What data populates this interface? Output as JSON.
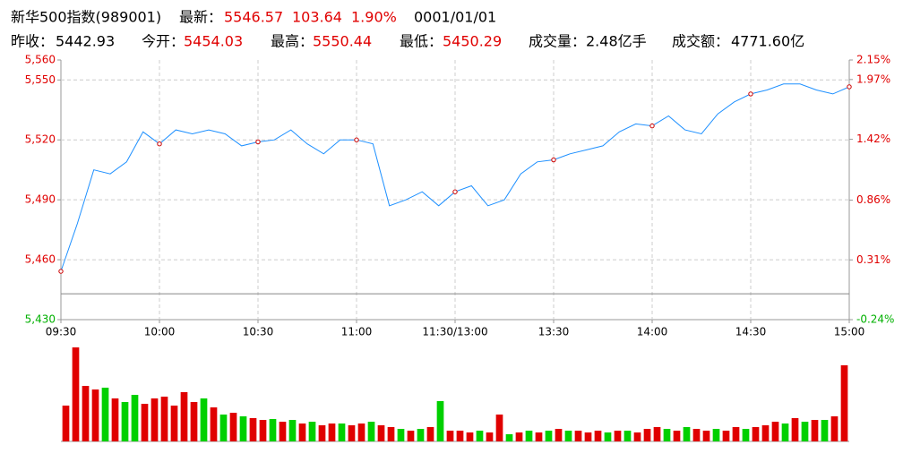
{
  "header": {
    "name": "新华500指数(989001)",
    "latest_label": "最新：",
    "latest": 5546.57,
    "change": 103.64,
    "change_pct": "1.90%",
    "date": "0001/01/01",
    "prev_close_label": "昨收：",
    "prev_close": 5442.93,
    "open_label": "今开：",
    "open": 5454.03,
    "high_label": "最高：",
    "high": 5550.44,
    "low_label": "最低：",
    "low": 5450.29,
    "volume_label": "成交量：",
    "volume": "2.48亿手",
    "amount_label": "成交额：",
    "amount": "4771.60亿"
  },
  "chart_data": [
    {
      "type": "line",
      "color": "#1e90ff",
      "up_color": "#e00000",
      "down_color": "#00b000",
      "grid": true,
      "x": [
        0,
        5,
        10,
        15,
        20,
        25,
        30,
        35,
        40,
        45,
        50,
        55,
        60,
        65,
        70,
        75,
        80,
        85,
        90,
        95,
        100,
        105,
        110,
        115,
        120,
        125,
        130,
        135,
        140,
        145,
        150,
        155,
        160,
        165,
        170,
        175,
        180,
        185,
        190,
        195,
        200,
        205,
        210,
        215,
        220,
        225,
        230,
        235,
        240
      ],
      "values": [
        5454.2,
        5478,
        5505,
        5503,
        5509,
        5524,
        5518,
        5525,
        5523,
        5525,
        5523,
        5517,
        5519,
        5520,
        5525,
        5518,
        5513,
        5520,
        5520,
        5518,
        5487,
        5490,
        5494,
        5487,
        5494,
        5497,
        5487,
        5490,
        5503,
        5509,
        5510,
        5513,
        5515,
        5517,
        5524,
        5528,
        5527,
        5532,
        5525,
        5523,
        5533,
        5539,
        5543,
        5545,
        5548,
        5548,
        5545,
        5543,
        5546.57
      ],
      "xlim": [
        0,
        240
      ],
      "xticks": [
        {
          "value": 0,
          "label": "09:30"
        },
        {
          "value": 30,
          "label": "10:00"
        },
        {
          "value": 60,
          "label": "10:30"
        },
        {
          "value": 90,
          "label": "11:00"
        },
        {
          "value": 120,
          "label": "11:30/13:00"
        },
        {
          "value": 150,
          "label": "13:30"
        },
        {
          "value": 180,
          "label": "14:00"
        },
        {
          "value": 210,
          "label": "14:30"
        },
        {
          "value": 240,
          "label": "15:00"
        }
      ],
      "ylim": [
        5430,
        5560
      ],
      "yticks": [
        {
          "value": 5430,
          "label": "5,430"
        },
        {
          "value": 5460,
          "label": "5,460"
        },
        {
          "value": 5490,
          "label": "5,490"
        },
        {
          "value": 5520,
          "label": "5,520"
        },
        {
          "value": 5550,
          "label": "5,550"
        },
        {
          "value": 5560,
          "label": "5,560"
        }
      ],
      "y2lim": [
        -0.24,
        2.15
      ],
      "y2ticks": [
        {
          "value": -0.24,
          "label": "-0.24%"
        },
        {
          "value": 0.31,
          "label": "0.31%"
        },
        {
          "value": 0.86,
          "label": "0.86%"
        },
        {
          "value": 1.42,
          "label": "1.42%"
        },
        {
          "value": 1.97,
          "label": "1.97%"
        },
        {
          "value": 2.15,
          "label": "2.15%"
        }
      ]
    },
    {
      "type": "bar",
      "ylim": [
        0,
        105
      ],
      "values": [
        40,
        105,
        62,
        58,
        60,
        48,
        44,
        52,
        42,
        48,
        50,
        40,
        55,
        44,
        48,
        38,
        30,
        32,
        28,
        26,
        24,
        25,
        22,
        24,
        20,
        22,
        18,
        20,
        20,
        18,
        20,
        22,
        18,
        16,
        14,
        12,
        14,
        16,
        45,
        12,
        12,
        10,
        12,
        10,
        30,
        8,
        10,
        12,
        10,
        12,
        14,
        12,
        12,
        10,
        12,
        10,
        12,
        12,
        10,
        14,
        16,
        14,
        12,
        16,
        14,
        12,
        14,
        12,
        16,
        14,
        16,
        18,
        22,
        20,
        26,
        22,
        24,
        24,
        28,
        85
      ],
      "colors": [
        "#e00000",
        "#e00000",
        "#e00000",
        "#e00000",
        "#00d000",
        "#e00000",
        "#00d000",
        "#00d000",
        "#e00000",
        "#e00000",
        "#e00000",
        "#e00000",
        "#e00000",
        "#e00000",
        "#00d000",
        "#e00000",
        "#00d000",
        "#e00000",
        "#00d000",
        "#e00000",
        "#e00000",
        "#00d000",
        "#e00000",
        "#00d000",
        "#e00000",
        "#00d000",
        "#e00000",
        "#e00000",
        "#00d000",
        "#e00000",
        "#e00000",
        "#00d000",
        "#e00000",
        "#e00000",
        "#00d000",
        "#e00000",
        "#00d000",
        "#e00000",
        "#00d000",
        "#e00000",
        "#e00000",
        "#e00000",
        "#00d000",
        "#e00000",
        "#e00000",
        "#00d000",
        "#e00000",
        "#00d000",
        "#e00000",
        "#00d000",
        "#e00000",
        "#00d000",
        "#e00000",
        "#e00000",
        "#e00000",
        "#00d000",
        "#e00000",
        "#00d000",
        "#e00000",
        "#e00000",
        "#e00000",
        "#00d000",
        "#e00000",
        "#00d000",
        "#e00000",
        "#e00000",
        "#00d000",
        "#e00000",
        "#e00000",
        "#00d000",
        "#e00000",
        "#e00000",
        "#e00000",
        "#00d000",
        "#e00000",
        "#00d000",
        "#e00000",
        "#00d000",
        "#e00000",
        "#e00000"
      ]
    }
  ]
}
